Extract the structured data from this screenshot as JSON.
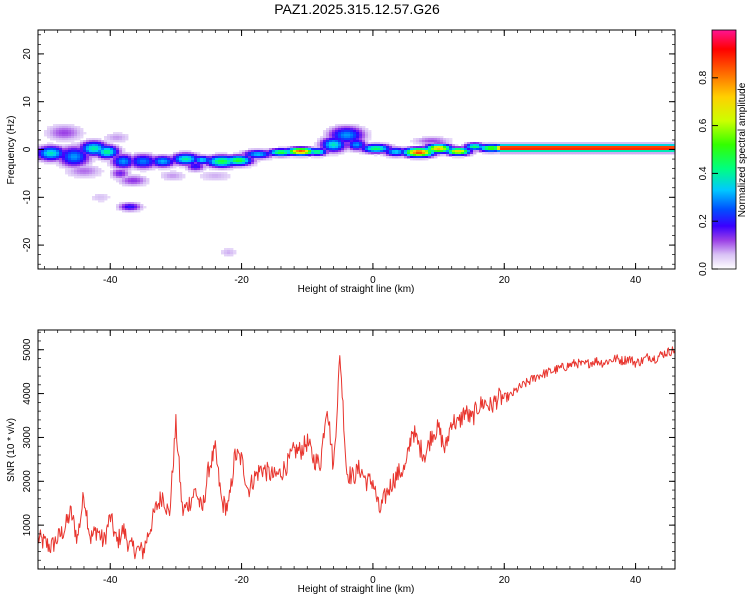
{
  "title": "PAZ1.2025.315.12.57.G26",
  "chart_data": [
    {
      "type": "heatmap",
      "xlabel": "Height of straight line (km)",
      "ylabel": "Frequency (Hz)",
      "xlim": [
        -51,
        46
      ],
      "ylim": [
        -25,
        25
      ],
      "xticks": [
        -40,
        -20,
        0,
        20,
        40
      ],
      "xtick_labels": [
        "-40",
        "-20",
        "0",
        "20",
        "40"
      ],
      "yticks": [
        -20,
        -10,
        0,
        10,
        20
      ],
      "ytick_labels": [
        "-20",
        "-10",
        "0",
        "10",
        "20"
      ],
      "colorbar": {
        "label": "Normalized spectral amplitude",
        "range": [
          0,
          1
        ],
        "ticks": [
          0.0,
          0.2,
          0.4,
          0.6,
          0.8
        ],
        "tick_labels": [
          "0.0",
          "0.2",
          "0.4",
          "0.6",
          "0.8"
        ],
        "stops": [
          "#ffffff",
          "#c9a8f0",
          "#8a2be2",
          "#0000ff",
          "#00e5ff",
          "#00ff00",
          "#ffff00",
          "#ff8000",
          "#ff0000",
          "#ff1493"
        ]
      },
      "blobs": [
        {
          "x": -47,
          "y": 3.5,
          "sx": 2.0,
          "sy": 1.2,
          "amp": 0.12
        },
        {
          "x": -49,
          "y": -0.8,
          "sx": 1.5,
          "sy": 1.0,
          "amp": 0.38
        },
        {
          "x": -45.5,
          "y": -1.5,
          "sx": 1.6,
          "sy": 1.4,
          "amp": 0.3
        },
        {
          "x": -42.5,
          "y": 0.2,
          "sx": 1.4,
          "sy": 1.0,
          "amp": 0.4
        },
        {
          "x": -40.5,
          "y": -0.5,
          "sx": 1.2,
          "sy": 0.9,
          "amp": 0.42
        },
        {
          "x": -44,
          "y": -4.5,
          "sx": 2.0,
          "sy": 1.0,
          "amp": 0.1
        },
        {
          "x": -38,
          "y": -2.5,
          "sx": 1.2,
          "sy": 1.0,
          "amp": 0.3
        },
        {
          "x": -35,
          "y": -2.5,
          "sx": 1.5,
          "sy": 1.0,
          "amp": 0.28
        },
        {
          "x": -36.5,
          "y": -6.5,
          "sx": 1.6,
          "sy": 0.8,
          "amp": 0.13
        },
        {
          "x": -38.5,
          "y": -5.0,
          "sx": 1.0,
          "sy": 0.8,
          "amp": 0.15
        },
        {
          "x": -39,
          "y": 2.5,
          "sx": 1.5,
          "sy": 0.8,
          "amp": 0.08
        },
        {
          "x": -37,
          "y": -12.0,
          "sx": 1.2,
          "sy": 0.6,
          "amp": 0.2
        },
        {
          "x": -41.5,
          "y": -10.0,
          "sx": 1.2,
          "sy": 0.8,
          "amp": 0.06
        },
        {
          "x": -32,
          "y": -2.5,
          "sx": 1.3,
          "sy": 0.8,
          "amp": 0.32
        },
        {
          "x": -28.5,
          "y": -2.0,
          "sx": 1.4,
          "sy": 0.8,
          "amp": 0.4
        },
        {
          "x": -27,
          "y": -3.5,
          "sx": 1.0,
          "sy": 0.7,
          "amp": 0.2
        },
        {
          "x": -30.5,
          "y": -5.5,
          "sx": 1.5,
          "sy": 0.8,
          "amp": 0.08
        },
        {
          "x": -26,
          "y": -2.2,
          "sx": 1.0,
          "sy": 0.6,
          "amp": 0.35
        },
        {
          "x": -23,
          "y": -2.5,
          "sx": 1.6,
          "sy": 0.8,
          "amp": 0.48
        },
        {
          "x": -20.5,
          "y": -2.3,
          "sx": 1.4,
          "sy": 0.7,
          "amp": 0.5
        },
        {
          "x": -24,
          "y": -5.5,
          "sx": 2.0,
          "sy": 0.8,
          "amp": 0.07
        },
        {
          "x": -22,
          "y": -21.5,
          "sx": 1.0,
          "sy": 0.7,
          "amp": 0.07
        },
        {
          "x": -17.5,
          "y": -1.0,
          "sx": 1.5,
          "sy": 0.6,
          "amp": 0.33
        },
        {
          "x": -14,
          "y": -0.6,
          "sx": 1.3,
          "sy": 0.5,
          "amp": 0.5
        },
        {
          "x": -11,
          "y": -0.4,
          "sx": 1.4,
          "sy": 0.5,
          "amp": 0.85
        },
        {
          "x": -8.5,
          "y": -0.5,
          "sx": 1.0,
          "sy": 0.5,
          "amp": 0.45
        },
        {
          "x": -6,
          "y": 1.0,
          "sx": 1.3,
          "sy": 1.0,
          "amp": 0.38
        },
        {
          "x": -4,
          "y": 3.0,
          "sx": 1.8,
          "sy": 1.2,
          "amp": 0.3
        },
        {
          "x": -2.5,
          "y": 1.0,
          "sx": 1.0,
          "sy": 0.8,
          "amp": 0.3
        },
        {
          "x": 0.5,
          "y": 0.2,
          "sx": 1.5,
          "sy": 0.6,
          "amp": 0.45
        },
        {
          "x": 3.5,
          "y": -0.5,
          "sx": 1.2,
          "sy": 0.6,
          "amp": 0.35
        },
        {
          "x": 7,
          "y": -0.6,
          "sx": 1.5,
          "sy": 0.6,
          "amp": 0.88
        },
        {
          "x": 10,
          "y": 0.2,
          "sx": 1.3,
          "sy": 0.6,
          "amp": 0.75
        },
        {
          "x": 13,
          "y": -0.4,
          "sx": 1.2,
          "sy": 0.5,
          "amp": 0.72
        },
        {
          "x": 15.5,
          "y": 0.6,
          "sx": 1.0,
          "sy": 0.5,
          "amp": 0.45
        },
        {
          "x": 9,
          "y": 1.8,
          "sx": 2.0,
          "sy": 0.6,
          "amp": 0.12
        },
        {
          "x": 18,
          "y": 0.3,
          "sx": 1.3,
          "sy": 0.5,
          "amp": 0.55
        }
      ],
      "ridge": {
        "x_start": 19,
        "x_end": 46,
        "freq": 0.3,
        "amp": 0.97
      }
    },
    {
      "type": "line",
      "xlabel": "Height of straight line (km)",
      "ylabel": "SNR (10 * v/v)",
      "xlim": [
        -51,
        46
      ],
      "ylim": [
        0,
        5450
      ],
      "xticks": [
        -40,
        -20,
        0,
        20,
        40
      ],
      "xtick_labels": [
        "-40",
        "-20",
        "0",
        "20",
        "40"
      ],
      "yticks": [
        1000,
        2000,
        3000,
        4000,
        5000
      ],
      "ytick_labels": [
        "1000",
        "2000",
        "3000",
        "4000",
        "5000"
      ],
      "color": "#e8352e",
      "x": [
        -51,
        -49,
        -47,
        -46,
        -45,
        -44,
        -43,
        -42,
        -41,
        -40,
        -39,
        -38,
        -37,
        -36,
        -35,
        -34,
        -33,
        -32,
        -31,
        -30,
        -29,
        -28,
        -27,
        -26,
        -25,
        -24,
        -23,
        -22,
        -21,
        -20,
        -19,
        -18,
        -17,
        -16,
        -15,
        -14,
        -13,
        -12,
        -11,
        -10,
        -9,
        -8,
        -7,
        -6,
        -5,
        -4,
        -3,
        -2,
        -1,
        0,
        1,
        2,
        3,
        4,
        5,
        6,
        7,
        8,
        9,
        10,
        11,
        12,
        13,
        14,
        15,
        16,
        17,
        18,
        19,
        20,
        21,
        22,
        23,
        24,
        25,
        26,
        27,
        28,
        29,
        30,
        31,
        32,
        33,
        34,
        35,
        36,
        37,
        38,
        39,
        40,
        41,
        42,
        43,
        44,
        45,
        46
      ],
      "y": [
        700,
        500,
        900,
        1300,
        700,
        1700,
        700,
        900,
        600,
        1200,
        600,
        900,
        500,
        450,
        400,
        900,
        1400,
        1700,
        1200,
        3300,
        1300,
        1500,
        1800,
        1300,
        2300,
        2700,
        1500,
        1400,
        2600,
        2500,
        1800,
        2100,
        2300,
        2200,
        2100,
        2200,
        2400,
        2700,
        2700,
        2900,
        2500,
        2400,
        3800,
        2300,
        4900,
        2200,
        2100,
        2300,
        2000,
        2000,
        1300,
        1700,
        2000,
        2200,
        2300,
        3200,
        2800,
        2600,
        3100,
        3200,
        2700,
        3400,
        3300,
        3600,
        3400,
        3700,
        3800,
        3700,
        3900,
        3900,
        3950,
        4100,
        4200,
        4300,
        4400,
        4450,
        4500,
        4550,
        4600,
        4650,
        4700,
        4650,
        4700,
        4750,
        4700,
        4750,
        4800,
        4750,
        4800,
        4700,
        4750,
        4850,
        4800,
        4900,
        4950,
        5000
      ]
    }
  ]
}
